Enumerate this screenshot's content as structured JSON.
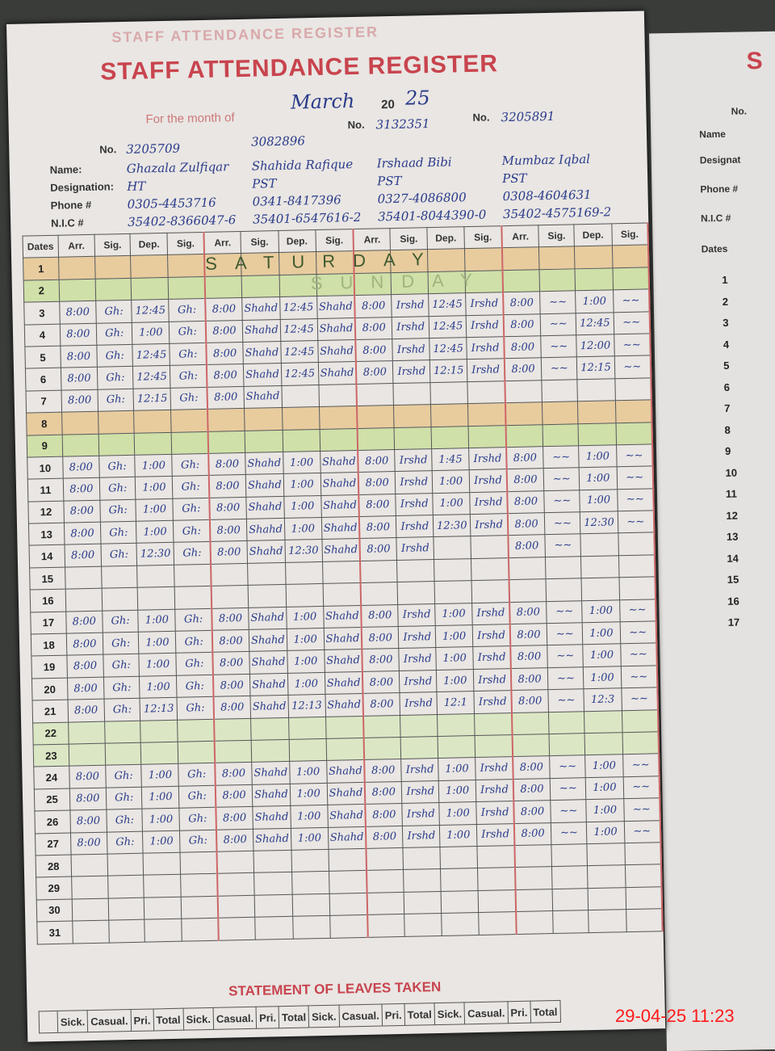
{
  "header": {
    "title": "STAFF ATTENDANCE REGISTER",
    "month_label": "For the month of",
    "month": "March",
    "year_prefix": "20",
    "year": "25",
    "no_label": "No."
  },
  "labels": {
    "name": "Name:",
    "designation": "Designation:",
    "phone": "Phone #",
    "nic": "N.I.C #",
    "dates": "Dates"
  },
  "column_labels": [
    "Arr.",
    "Sig.",
    "Dep.",
    "Sig."
  ],
  "staff": [
    {
      "no": "3205709",
      "name": "Ghazala Zulfiqar",
      "designation": "HT",
      "phone": "0305-4453716",
      "nic": "35402-8366047-6",
      "sig": "Gh:"
    },
    {
      "no": "3082896",
      "name": "Shahida Rafique",
      "designation": "PST",
      "phone": "0341-8417396",
      "nic": "35401-6547616-2",
      "sig": "Shahd"
    },
    {
      "no": "3132351",
      "name": "Irshaad Bibi",
      "designation": "PST",
      "phone": "0327-4086800",
      "nic": "35401-8044390-0",
      "sig": "Irshd"
    },
    {
      "no": "3205891",
      "name": "Mumbaz Iqbal",
      "designation": "PST",
      "phone": "0308-4604631",
      "nic": "35402-4575169-2",
      "sig": "~~"
    }
  ],
  "weekend_notes": {
    "saturday": "SATURDAY",
    "sunday": "SUNDAY"
  },
  "days": [
    {
      "date": "1",
      "type": "sat"
    },
    {
      "date": "2",
      "type": "sun"
    },
    {
      "date": "3",
      "arr": [
        "8:00",
        "8:00",
        "8:00",
        "8:00"
      ],
      "dep": [
        "12:45",
        "12:45",
        "12:45",
        "1:00"
      ]
    },
    {
      "date": "4",
      "arr": [
        "8:00",
        "8:00",
        "8:00",
        "8:00"
      ],
      "dep": [
        "1:00",
        "12:45",
        "12:45",
        "12:45"
      ]
    },
    {
      "date": "5",
      "arr": [
        "8:00",
        "8:00",
        "8:00",
        "8:00"
      ],
      "dep": [
        "12:45",
        "12:45",
        "12:45",
        "12:00"
      ]
    },
    {
      "date": "6",
      "arr": [
        "8:00",
        "8:00",
        "8:00",
        "8:00"
      ],
      "dep": [
        "12:45",
        "12:45",
        "12:15",
        "12:15"
      ]
    },
    {
      "date": "7",
      "arr": [
        "8:00",
        "8:00",
        "",
        ""
      ],
      "dep": [
        "12:15",
        "",
        "",
        ""
      ]
    },
    {
      "date": "8",
      "type": "sat"
    },
    {
      "date": "9",
      "type": "sun"
    },
    {
      "date": "10",
      "arr": [
        "8:00",
        "8:00",
        "8:00",
        "8:00"
      ],
      "dep": [
        "1:00",
        "1:00",
        "1:45",
        "1:00"
      ]
    },
    {
      "date": "11",
      "arr": [
        "8:00",
        "8:00",
        "8:00",
        "8:00"
      ],
      "dep": [
        "1:00",
        "1:00",
        "1:00",
        "1:00"
      ]
    },
    {
      "date": "12",
      "arr": [
        "8:00",
        "8:00",
        "8:00",
        "8:00"
      ],
      "dep": [
        "1:00",
        "1:00",
        "1:00",
        "1:00"
      ]
    },
    {
      "date": "13",
      "arr": [
        "8:00",
        "8:00",
        "8:00",
        "8:00"
      ],
      "dep": [
        "1:00",
        "1:00",
        "12:30",
        "12:30"
      ]
    },
    {
      "date": "14",
      "arr": [
        "8:00",
        "8:00",
        "8:00",
        "8:00"
      ],
      "dep": [
        "12:30",
        "12:30",
        "",
        ""
      ]
    },
    {
      "date": "15",
      "type": "blank"
    },
    {
      "date": "16",
      "type": "blank"
    },
    {
      "date": "17",
      "arr": [
        "8:00",
        "8:00",
        "8:00",
        "8:00"
      ],
      "dep": [
        "1:00",
        "1:00",
        "1:00",
        "1:00"
      ]
    },
    {
      "date": "18",
      "arr": [
        "8:00",
        "8:00",
        "8:00",
        "8:00"
      ],
      "dep": [
        "1:00",
        "1:00",
        "1:00",
        "1:00"
      ]
    },
    {
      "date": "19",
      "arr": [
        "8:00",
        "8:00",
        "8:00",
        "8:00"
      ],
      "dep": [
        "1:00",
        "1:00",
        "1:00",
        "1:00"
      ]
    },
    {
      "date": "20",
      "arr": [
        "8:00",
        "8:00",
        "8:00",
        "8:00"
      ],
      "dep": [
        "1:00",
        "1:00",
        "1:00",
        "1:00"
      ]
    },
    {
      "date": "21",
      "arr": [
        "8:00",
        "8:00",
        "8:00",
        "8:00"
      ],
      "dep": [
        "12:13",
        "12:13",
        "12:1",
        "12:3"
      ]
    },
    {
      "date": "22",
      "type": "green"
    },
    {
      "date": "23",
      "type": "green"
    },
    {
      "date": "24",
      "arr": [
        "8:00",
        "8:00",
        "8:00",
        "8:00"
      ],
      "dep": [
        "1:00",
        "1:00",
        "1:00",
        "1:00"
      ]
    },
    {
      "date": "25",
      "arr": [
        "8:00",
        "8:00",
        "8:00",
        "8:00"
      ],
      "dep": [
        "1:00",
        "1:00",
        "1:00",
        "1:00"
      ]
    },
    {
      "date": "26",
      "arr": [
        "8:00",
        "8:00",
        "8:00",
        "8:00"
      ],
      "dep": [
        "1:00",
        "1:00",
        "1:00",
        "1:00"
      ]
    },
    {
      "date": "27",
      "arr": [
        "8:00",
        "8:00",
        "8:00",
        "8:00"
      ],
      "dep": [
        "1:00",
        "1:00",
        "1:00",
        "1:00"
      ]
    },
    {
      "date": "28",
      "type": "blank"
    },
    {
      "date": "29",
      "type": "blank"
    },
    {
      "date": "30",
      "type": "blank"
    },
    {
      "date": "31",
      "type": "blank"
    }
  ],
  "leaves": {
    "title": "STATEMENT OF LEAVES TAKEN",
    "columns": [
      "Sick.",
      "Casual.",
      "Pri.",
      "Total",
      "Sick.",
      "Casual.",
      "Pri.",
      "Total",
      "Sick.",
      "Casual.",
      "Pri.",
      "Total",
      "Sick.",
      "Casual.",
      "Pri.",
      "Total"
    ]
  },
  "right_page": {
    "title": "S",
    "labels": [
      "No.",
      "Name",
      "Designat",
      "Phone #",
      "N.I.C #",
      "Dates"
    ],
    "dates": [
      "1",
      "2",
      "3",
      "4",
      "5",
      "6",
      "7",
      "8",
      "9",
      "10",
      "11",
      "12",
      "13",
      "14",
      "15",
      "16",
      "17"
    ]
  },
  "timestamp": "29-04-25  11:23",
  "colors": {
    "title_red": "#c8444e",
    "ink_blue": "#2a3b8a",
    "saturday_band": "#e8cc9e",
    "sunday_band": "#cfe0a8",
    "timestamp_red": "#ff1a1a"
  }
}
